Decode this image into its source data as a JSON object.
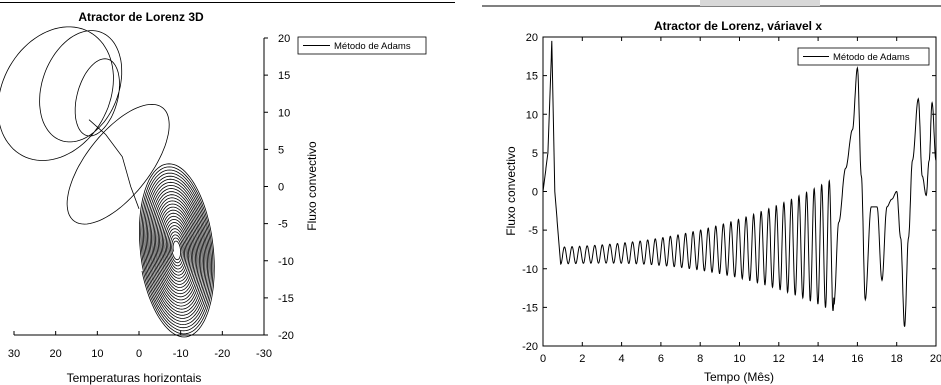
{
  "chart_data": [
    {
      "type": "line",
      "title": "Atractor de Lorenz 3D",
      "xlabel": "Temperaturas horizontais",
      "ylabel": "Fluxo convectivo",
      "xlim": [
        30,
        -30
      ],
      "ylim": [
        -20,
        20
      ],
      "x_ticks": [
        "30",
        "20",
        "10",
        "0",
        "-10",
        "-20",
        "-30"
      ],
      "y_ticks": [
        "20",
        "15",
        "10",
        "5",
        "0",
        "-5",
        "-10",
        "-15",
        "-20"
      ],
      "grid": false,
      "legend_position": "top-right",
      "series": [
        {
          "name": "Método de Adams",
          "description_points": "spiral trajectory: tight spiral centred near (-9,-8.5), outer loops reaching upper-left lobe near (22,19)"
        }
      ]
    },
    {
      "type": "line",
      "title": "Atractor de Lorenz, váriavel x",
      "xlabel": "Tempo (Mês)",
      "ylabel": "Fluxo convectivo",
      "xlim": [
        0,
        20
      ],
      "ylim": [
        -20,
        20
      ],
      "x_ticks": [
        "0",
        "2",
        "4",
        "6",
        "8",
        "10",
        "12",
        "14",
        "16",
        "18",
        "20"
      ],
      "y_ticks": [
        "20",
        "15",
        "10",
        "5",
        "0",
        "-5",
        "-10",
        "-15",
        "-20"
      ],
      "grid": false,
      "legend_position": "top-right",
      "series": [
        {
          "name": "Método de Adams",
          "x": [
            0,
            0.2,
            0.45,
            0.6,
            0.9,
            1.2,
            4,
            8,
            12,
            13.5,
            14.4,
            14.8,
            15.4,
            16.0,
            16.4,
            17.0,
            17.5,
            18.0,
            18.4,
            18.7,
            19.1,
            19.5,
            19.8,
            20
          ],
          "y": [
            0,
            5,
            19.5,
            0,
            -9.5,
            -7.5,
            -7.2,
            -6.6,
            -5.0,
            -3.0,
            -15,
            0,
            5,
            16,
            -14,
            -2,
            -11,
            0,
            -17.5,
            0,
            12,
            -0.5,
            11.5,
            0
          ]
        }
      ]
    }
  ]
}
